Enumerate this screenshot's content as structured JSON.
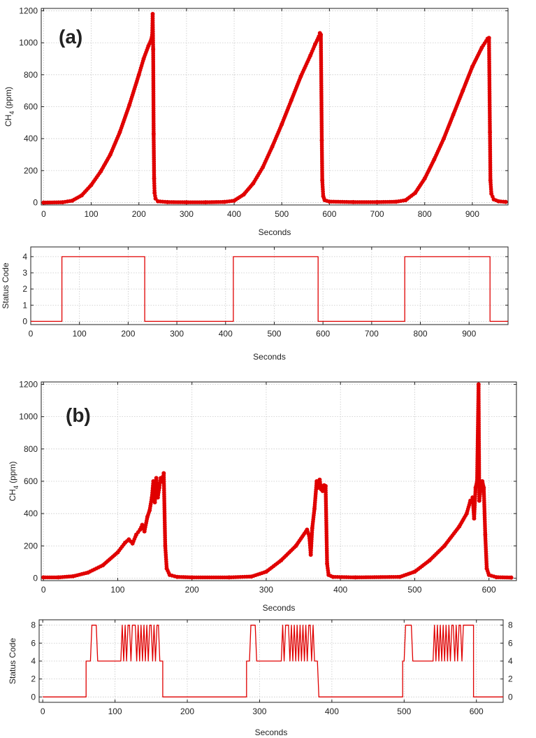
{
  "colors": {
    "series": "#e00000",
    "frame": "#222222",
    "grid": "#c8c8c8"
  },
  "panels": {
    "a": "(a)",
    "b": "(b)"
  },
  "chart_data": [
    {
      "id": "a-ch4",
      "type": "scatter",
      "panel": "(a)",
      "xlabel": "Seconds",
      "ylabel": "CH4 (ppm)",
      "xlim": [
        -5,
        975
      ],
      "ylim": [
        -15,
        1215
      ],
      "xticks": [
        0,
        100,
        200,
        300,
        400,
        500,
        600,
        700,
        800,
        900
      ],
      "yticks": [
        0,
        200,
        400,
        600,
        800,
        1000,
        1200
      ],
      "grid": true,
      "series": [
        {
          "markers": true,
          "points": [
            [
              0,
              0
            ],
            [
              40,
              2
            ],
            [
              60,
              12
            ],
            [
              80,
              45
            ],
            [
              100,
              110
            ],
            [
              120,
              195
            ],
            [
              140,
              300
            ],
            [
              160,
              440
            ],
            [
              180,
              610
            ],
            [
              200,
              800
            ],
            [
              210,
              900
            ],
            [
              220,
              980
            ],
            [
              226,
              1020
            ],
            [
              228,
              1050
            ],
            [
              229,
              1180
            ],
            [
              230,
              960
            ],
            [
              231,
              430
            ],
            [
              232,
              150
            ],
            [
              233,
              60
            ],
            [
              235,
              25
            ],
            [
              240,
              8
            ],
            [
              260,
              3
            ],
            [
              300,
              2
            ],
            [
              340,
              2
            ],
            [
              380,
              4
            ],
            [
              400,
              12
            ],
            [
              420,
              50
            ],
            [
              440,
              120
            ],
            [
              460,
              220
            ],
            [
              480,
              350
            ],
            [
              500,
              490
            ],
            [
              520,
              640
            ],
            [
              540,
              790
            ],
            [
              560,
              920
            ],
            [
              570,
              990
            ],
            [
              578,
              1040
            ],
            [
              580,
              1060
            ],
            [
              582,
              1050
            ],
            [
              584,
              390
            ],
            [
              585,
              140
            ],
            [
              587,
              40
            ],
            [
              590,
              15
            ],
            [
              600,
              6
            ],
            [
              650,
              3
            ],
            [
              700,
              3
            ],
            [
              740,
              5
            ],
            [
              760,
              15
            ],
            [
              780,
              60
            ],
            [
              800,
              150
            ],
            [
              820,
              270
            ],
            [
              840,
              400
            ],
            [
              860,
              550
            ],
            [
              880,
              700
            ],
            [
              900,
              850
            ],
            [
              920,
              970
            ],
            [
              932,
              1025
            ],
            [
              935,
              1030
            ],
            [
              937,
              440
            ],
            [
              938,
              140
            ],
            [
              940,
              55
            ],
            [
              945,
              20
            ],
            [
              955,
              8
            ],
            [
              970,
              4
            ]
          ]
        }
      ]
    },
    {
      "id": "a-status",
      "type": "line",
      "xlabel": "Seconds",
      "ylabel": "Status Code",
      "xlim": [
        0,
        980
      ],
      "ylim": [
        -0.2,
        4.6
      ],
      "xticks": [
        0,
        100,
        200,
        300,
        400,
        500,
        600,
        700,
        800,
        900
      ],
      "yticks": [
        0,
        1,
        2,
        3,
        4
      ],
      "grid": true,
      "series": [
        {
          "markers": false,
          "points": [
            [
              0,
              0
            ],
            [
              64,
              0
            ],
            [
              64,
              4
            ],
            [
              234,
              4
            ],
            [
              234,
              0
            ],
            [
              416,
              0
            ],
            [
              416,
              4
            ],
            [
              590,
              4
            ],
            [
              590,
              0
            ],
            [
              768,
              0
            ],
            [
              768,
              4
            ],
            [
              943,
              4
            ],
            [
              943,
              0
            ],
            [
              980,
              0
            ]
          ]
        }
      ]
    },
    {
      "id": "b-ch4",
      "type": "scatter",
      "panel": "(b)",
      "xlabel": "Seconds",
      "ylabel": "CH4 (ppm)",
      "xlim": [
        -3,
        637
      ],
      "ylim": [
        -15,
        1215
      ],
      "xticks": [
        0,
        100,
        200,
        300,
        400,
        500,
        600
      ],
      "yticks": [
        0,
        200,
        400,
        600,
        800,
        1000,
        1200
      ],
      "grid": true,
      "series": [
        {
          "markers": true,
          "points": [
            [
              0,
              5
            ],
            [
              20,
              5
            ],
            [
              40,
              12
            ],
            [
              60,
              35
            ],
            [
              80,
              80
            ],
            [
              100,
              160
            ],
            [
              110,
              220
            ],
            [
              115,
              240
            ],
            [
              120,
              215
            ],
            [
              125,
              270
            ],
            [
              130,
              300
            ],
            [
              133,
              330
            ],
            [
              136,
              290
            ],
            [
              140,
              380
            ],
            [
              143,
              420
            ],
            [
              146,
              500
            ],
            [
              148,
              600
            ],
            [
              150,
              470
            ],
            [
              152,
              620
            ],
            [
              154,
              500
            ],
            [
              156,
              560
            ],
            [
              158,
              620
            ],
            [
              160,
              600
            ],
            [
              162,
              650
            ],
            [
              164,
              200
            ],
            [
              166,
              60
            ],
            [
              170,
              20
            ],
            [
              180,
              8
            ],
            [
              200,
              5
            ],
            [
              250,
              5
            ],
            [
              280,
              10
            ],
            [
              300,
              40
            ],
            [
              320,
              110
            ],
            [
              340,
              200
            ],
            [
              355,
              300
            ],
            [
              358,
              260
            ],
            [
              360,
              145
            ],
            [
              362,
              310
            ],
            [
              365,
              430
            ],
            [
              368,
              600
            ],
            [
              370,
              560
            ],
            [
              372,
              610
            ],
            [
              374,
              550
            ],
            [
              376,
              540
            ],
            [
              378,
              575
            ],
            [
              380,
              570
            ],
            [
              382,
              90
            ],
            [
              384,
              20
            ],
            [
              390,
              8
            ],
            [
              420,
              5
            ],
            [
              480,
              8
            ],
            [
              500,
              40
            ],
            [
              520,
              110
            ],
            [
              540,
              200
            ],
            [
              560,
              320
            ],
            [
              570,
              400
            ],
            [
              575,
              480
            ],
            [
              578,
              500
            ],
            [
              580,
              370
            ],
            [
              582,
              560
            ],
            [
              584,
              600
            ],
            [
              586,
              1200
            ],
            [
              587,
              480
            ],
            [
              589,
              560
            ],
            [
              591,
              600
            ],
            [
              593,
              560
            ],
            [
              595,
              270
            ],
            [
              597,
              60
            ],
            [
              600,
              20
            ],
            [
              610,
              6
            ],
            [
              630,
              4
            ]
          ]
        }
      ]
    },
    {
      "id": "b-status",
      "type": "line",
      "xlabel": "Seconds",
      "ylabel": "Status Code",
      "xlim": [
        -5,
        637
      ],
      "ylim": [
        -0.6,
        8.6
      ],
      "xticks": [
        0,
        100,
        200,
        300,
        400,
        500,
        600
      ],
      "yticks": [
        0,
        2,
        4,
        6,
        8
      ],
      "yticks_right": [
        0,
        2,
        4,
        6,
        8
      ],
      "grid": true,
      "series": [
        {
          "markers": false,
          "points": [
            [
              0,
              0
            ],
            [
              60,
              0
            ],
            [
              60,
              4
            ],
            [
              66,
              4
            ],
            [
              68,
              8
            ],
            [
              74,
              8
            ],
            [
              76,
              4
            ],
            [
              108,
              4
            ],
            [
              110,
              8
            ],
            [
              112,
              4
            ],
            [
              114,
              8
            ],
            [
              116,
              4
            ],
            [
              118,
              8
            ],
            [
              120,
              8
            ],
            [
              122,
              4
            ],
            [
              124,
              8
            ],
            [
              128,
              8
            ],
            [
              130,
              4
            ],
            [
              132,
              8
            ],
            [
              134,
              4
            ],
            [
              136,
              8
            ],
            [
              138,
              4
            ],
            [
              140,
              8
            ],
            [
              142,
              4
            ],
            [
              144,
              8
            ],
            [
              146,
              4
            ],
            [
              148,
              8
            ],
            [
              150,
              8
            ],
            [
              152,
              4
            ],
            [
              154,
              8
            ],
            [
              156,
              4
            ],
            [
              158,
              8
            ],
            [
              160,
              8
            ],
            [
              162,
              4
            ],
            [
              166,
              4
            ],
            [
              166,
              0
            ],
            [
              282,
              0
            ],
            [
              282,
              4
            ],
            [
              286,
              4
            ],
            [
              288,
              8
            ],
            [
              294,
              8
            ],
            [
              296,
              4
            ],
            [
              330,
              4
            ],
            [
              332,
              8
            ],
            [
              334,
              4
            ],
            [
              336,
              8
            ],
            [
              340,
              8
            ],
            [
              342,
              4
            ],
            [
              344,
              8
            ],
            [
              346,
              4
            ],
            [
              348,
              8
            ],
            [
              350,
              4
            ],
            [
              352,
              8
            ],
            [
              354,
              4
            ],
            [
              356,
              8
            ],
            [
              358,
              4
            ],
            [
              360,
              8
            ],
            [
              362,
              4
            ],
            [
              364,
              8
            ],
            [
              366,
              4
            ],
            [
              368,
              8
            ],
            [
              370,
              8
            ],
            [
              372,
              4
            ],
            [
              374,
              8
            ],
            [
              376,
              4
            ],
            [
              380,
              4
            ],
            [
              382,
              0
            ],
            [
              498,
              0
            ],
            [
              498,
              4
            ],
            [
              500,
              4
            ],
            [
              502,
              8
            ],
            [
              510,
              8
            ],
            [
              512,
              4
            ],
            [
              540,
              4
            ],
            [
              542,
              8
            ],
            [
              544,
              4
            ],
            [
              546,
              8
            ],
            [
              548,
              4
            ],
            [
              550,
              8
            ],
            [
              552,
              4
            ],
            [
              554,
              8
            ],
            [
              556,
              4
            ],
            [
              558,
              8
            ],
            [
              560,
              4
            ],
            [
              562,
              8
            ],
            [
              564,
              4
            ],
            [
              566,
              8
            ],
            [
              568,
              8
            ],
            [
              570,
              4
            ],
            [
              572,
              8
            ],
            [
              574,
              4
            ],
            [
              576,
              8
            ],
            [
              578,
              8
            ],
            [
              580,
              4
            ],
            [
              582,
              8
            ],
            [
              584,
              8
            ],
            [
              586,
              8
            ],
            [
              592,
              8
            ],
            [
              594,
              8
            ],
            [
              596,
              8
            ],
            [
              596,
              0
            ],
            [
              637,
              0
            ]
          ]
        }
      ]
    }
  ]
}
